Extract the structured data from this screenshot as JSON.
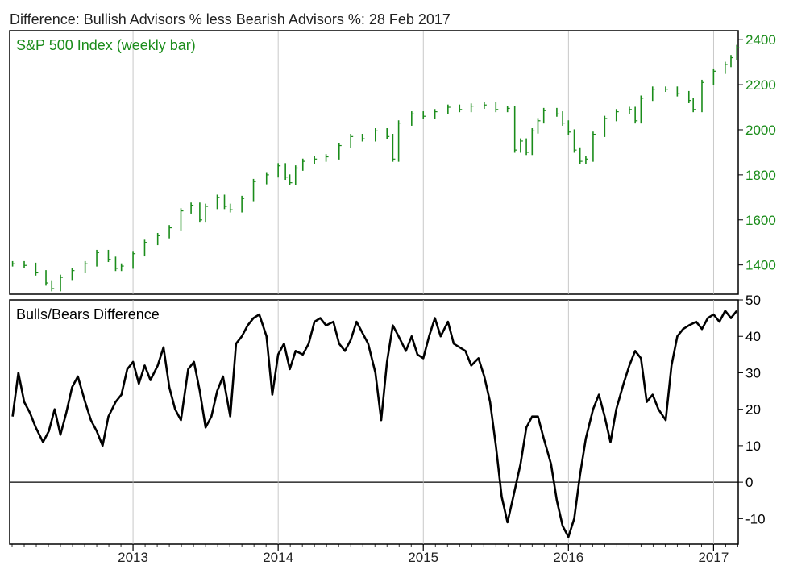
{
  "chart_title": "Difference: Bullish Advisors % less Bearish Advisors %: 28 Feb 2017",
  "colors": {
    "price": "#1a8c1a",
    "diff": "#000000",
    "frame": "#000000",
    "zero": "#000000"
  },
  "x_axis": {
    "range": [
      2012.15,
      2017.17
    ],
    "tick_labels": [
      "2013",
      "2014",
      "2015",
      "2016",
      "2017"
    ],
    "tick_positions": [
      2013.0,
      2014.0,
      2015.0,
      2016.0,
      2017.0
    ]
  },
  "chart_data": [
    {
      "type": "bar",
      "label": "S&P 500 Index (weekly bar)",
      "axis_side": "right",
      "ylim": [
        1270,
        2440
      ],
      "yticks": [
        1400,
        1600,
        1800,
        2000,
        2200,
        2400
      ],
      "points": [
        [
          2012.17,
          1405
        ],
        [
          2012.25,
          1398
        ],
        [
          2012.33,
          1365
        ],
        [
          2012.4,
          1320
        ],
        [
          2012.44,
          1295
        ],
        [
          2012.5,
          1345
        ],
        [
          2012.58,
          1375
        ],
        [
          2012.67,
          1405
        ],
        [
          2012.75,
          1455
        ],
        [
          2012.83,
          1425
        ],
        [
          2012.88,
          1385
        ],
        [
          2012.92,
          1395
        ],
        [
          2013.0,
          1450
        ],
        [
          2013.08,
          1500
        ],
        [
          2013.17,
          1530
        ],
        [
          2013.25,
          1565
        ],
        [
          2013.33,
          1640
        ],
        [
          2013.4,
          1665
        ],
        [
          2013.46,
          1600
        ],
        [
          2013.5,
          1660
        ],
        [
          2013.58,
          1700
        ],
        [
          2013.63,
          1660
        ],
        [
          2013.67,
          1645
        ],
        [
          2013.75,
          1695
        ],
        [
          2013.83,
          1770
        ],
        [
          2013.92,
          1800
        ],
        [
          2014.0,
          1840
        ],
        [
          2014.05,
          1790
        ],
        [
          2014.08,
          1765
        ],
        [
          2014.12,
          1830
        ],
        [
          2014.17,
          1860
        ],
        [
          2014.25,
          1870
        ],
        [
          2014.33,
          1880
        ],
        [
          2014.42,
          1930
        ],
        [
          2014.5,
          1970
        ],
        [
          2014.58,
          1960
        ],
        [
          2014.67,
          1995
        ],
        [
          2014.75,
          1970
        ],
        [
          2014.79,
          1870
        ],
        [
          2014.83,
          2030
        ],
        [
          2014.92,
          2070
        ],
        [
          2015.0,
          2060
        ],
        [
          2015.08,
          2080
        ],
        [
          2015.17,
          2100
        ],
        [
          2015.25,
          2090
        ],
        [
          2015.33,
          2105
        ],
        [
          2015.42,
          2110
        ],
        [
          2015.5,
          2090
        ],
        [
          2015.58,
          2095
        ],
        [
          2015.63,
          1910
        ],
        [
          2015.67,
          1950
        ],
        [
          2015.71,
          1900
        ],
        [
          2015.75,
          1995
        ],
        [
          2015.79,
          2040
        ],
        [
          2015.83,
          2085
        ],
        [
          2015.92,
          2070
        ],
        [
          2015.96,
          2030
        ],
        [
          2016.0,
          1990
        ],
        [
          2016.04,
          1910
        ],
        [
          2016.08,
          1860
        ],
        [
          2016.12,
          1870
        ],
        [
          2016.17,
          1980
        ],
        [
          2016.25,
          2050
        ],
        [
          2016.33,
          2080
        ],
        [
          2016.42,
          2090
        ],
        [
          2016.46,
          2040
        ],
        [
          2016.5,
          2140
        ],
        [
          2016.58,
          2180
        ],
        [
          2016.67,
          2180
        ],
        [
          2016.75,
          2160
        ],
        [
          2016.83,
          2130
        ],
        [
          2016.86,
          2090
        ],
        [
          2016.92,
          2210
        ],
        [
          2017.0,
          2260
        ],
        [
          2017.08,
          2290
        ],
        [
          2017.12,
          2320
        ],
        [
          2017.16,
          2365
        ]
      ]
    },
    {
      "type": "line",
      "label": "Bulls/Bears Difference",
      "axis_side": "right",
      "ylim": [
        -17,
        50
      ],
      "yticks": [
        -10,
        0,
        10,
        20,
        30,
        40,
        50
      ],
      "zero_line": true,
      "points": [
        [
          2012.17,
          18
        ],
        [
          2012.21,
          30
        ],
        [
          2012.25,
          22
        ],
        [
          2012.29,
          19
        ],
        [
          2012.33,
          15
        ],
        [
          2012.38,
          11
        ],
        [
          2012.42,
          14
        ],
        [
          2012.46,
          20
        ],
        [
          2012.5,
          13
        ],
        [
          2012.54,
          19
        ],
        [
          2012.58,
          26
        ],
        [
          2012.62,
          29
        ],
        [
          2012.67,
          22
        ],
        [
          2012.71,
          17
        ],
        [
          2012.75,
          14
        ],
        [
          2012.79,
          10
        ],
        [
          2012.83,
          18
        ],
        [
          2012.88,
          22
        ],
        [
          2012.92,
          24
        ],
        [
          2012.96,
          31
        ],
        [
          2013.0,
          33
        ],
        [
          2013.04,
          27
        ],
        [
          2013.08,
          32
        ],
        [
          2013.12,
          28
        ],
        [
          2013.17,
          32
        ],
        [
          2013.21,
          37
        ],
        [
          2013.25,
          26
        ],
        [
          2013.29,
          20
        ],
        [
          2013.33,
          17
        ],
        [
          2013.38,
          31
        ],
        [
          2013.42,
          33
        ],
        [
          2013.46,
          25
        ],
        [
          2013.5,
          15
        ],
        [
          2013.54,
          18
        ],
        [
          2013.58,
          25
        ],
        [
          2013.62,
          29
        ],
        [
          2013.67,
          18
        ],
        [
          2013.71,
          38
        ],
        [
          2013.75,
          40
        ],
        [
          2013.79,
          43
        ],
        [
          2013.83,
          45
        ],
        [
          2013.87,
          46
        ],
        [
          2013.92,
          40
        ],
        [
          2013.96,
          24
        ],
        [
          2014.0,
          35
        ],
        [
          2014.04,
          38
        ],
        [
          2014.08,
          31
        ],
        [
          2014.12,
          36
        ],
        [
          2014.17,
          35
        ],
        [
          2014.21,
          38
        ],
        [
          2014.25,
          44
        ],
        [
          2014.29,
          45
        ],
        [
          2014.33,
          43
        ],
        [
          2014.38,
          44
        ],
        [
          2014.42,
          38
        ],
        [
          2014.46,
          36
        ],
        [
          2014.5,
          39
        ],
        [
          2014.54,
          44
        ],
        [
          2014.58,
          41
        ],
        [
          2014.62,
          38
        ],
        [
          2014.67,
          30
        ],
        [
          2014.71,
          17
        ],
        [
          2014.75,
          33
        ],
        [
          2014.79,
          43
        ],
        [
          2014.83,
          40
        ],
        [
          2014.88,
          36
        ],
        [
          2014.92,
          40
        ],
        [
          2014.96,
          35
        ],
        [
          2015.0,
          34
        ],
        [
          2015.04,
          40
        ],
        [
          2015.08,
          45
        ],
        [
          2015.12,
          40
        ],
        [
          2015.17,
          44
        ],
        [
          2015.21,
          38
        ],
        [
          2015.25,
          37
        ],
        [
          2015.29,
          36
        ],
        [
          2015.33,
          32
        ],
        [
          2015.38,
          34
        ],
        [
          2015.42,
          29
        ],
        [
          2015.46,
          22
        ],
        [
          2015.5,
          10
        ],
        [
          2015.54,
          -4
        ],
        [
          2015.58,
          -11
        ],
        [
          2015.62,
          -4
        ],
        [
          2015.67,
          5
        ],
        [
          2015.71,
          15
        ],
        [
          2015.75,
          18
        ],
        [
          2015.79,
          18
        ],
        [
          2015.83,
          12
        ],
        [
          2015.88,
          5
        ],
        [
          2015.92,
          -5
        ],
        [
          2015.96,
          -12
        ],
        [
          2016.0,
          -15
        ],
        [
          2016.04,
          -10
        ],
        [
          2016.08,
          2
        ],
        [
          2016.12,
          12
        ],
        [
          2016.17,
          20
        ],
        [
          2016.21,
          24
        ],
        [
          2016.25,
          18
        ],
        [
          2016.29,
          11
        ],
        [
          2016.33,
          20
        ],
        [
          2016.38,
          27
        ],
        [
          2016.42,
          32
        ],
        [
          2016.46,
          36
        ],
        [
          2016.5,
          34
        ],
        [
          2016.54,
          22
        ],
        [
          2016.58,
          24
        ],
        [
          2016.62,
          20
        ],
        [
          2016.67,
          17
        ],
        [
          2016.71,
          32
        ],
        [
          2016.75,
          40
        ],
        [
          2016.79,
          42
        ],
        [
          2016.83,
          43
        ],
        [
          2016.88,
          44
        ],
        [
          2016.92,
          42
        ],
        [
          2016.96,
          45
        ],
        [
          2017.0,
          46
        ],
        [
          2017.04,
          44
        ],
        [
          2017.08,
          47
        ],
        [
          2017.12,
          45
        ],
        [
          2017.16,
          47
        ]
      ]
    }
  ]
}
